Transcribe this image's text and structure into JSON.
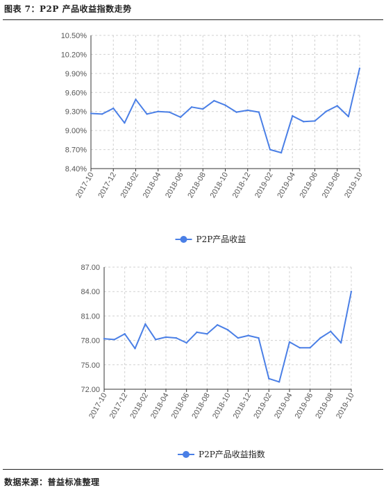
{
  "figure_title": "图表 7：P2P 产品收益指数走势",
  "source": "数据来源：普益标准整理",
  "colors": {
    "line": "#4a7fe6",
    "grid": "#d0d0d0",
    "axis": "#333333"
  },
  "chart_data": [
    {
      "type": "line",
      "title": "",
      "x": [
        "2017-10",
        "2017-11",
        "2017-12",
        "2018-01",
        "2018-02",
        "2018-03",
        "2018-04",
        "2018-05",
        "2018-06",
        "2018-07",
        "2018-08",
        "2018-09",
        "2018-10",
        "2018-11",
        "2018-12",
        "2019-01",
        "2019-02",
        "2019-03",
        "2019-04",
        "2019-05",
        "2019-06",
        "2019-07",
        "2019-08",
        "2019-09",
        "2019-10"
      ],
      "x_tick_labels": [
        "2017-10",
        "2017-12",
        "2018-02",
        "2018-04",
        "2018-06",
        "2018-08",
        "2018-10",
        "2018-12",
        "2019-02",
        "2019-04",
        "2019-06",
        "2019-08",
        "2019-10"
      ],
      "y_ticks": [
        "8.40%",
        "8.70%",
        "9.00%",
        "9.30%",
        "9.60%",
        "9.90%",
        "10.20%",
        "10.50%"
      ],
      "ylim": [
        8.4,
        10.5
      ],
      "y_unit": "percent",
      "series": [
        {
          "name": "P2P产品收益",
          "values": [
            9.27,
            9.26,
            9.35,
            9.12,
            9.49,
            9.26,
            9.3,
            9.29,
            9.21,
            9.37,
            9.34,
            9.47,
            9.4,
            9.29,
            9.32,
            9.29,
            8.7,
            8.65,
            9.23,
            9.14,
            9.15,
            9.3,
            9.39,
            9.22,
            9.98
          ]
        }
      ],
      "grid": true,
      "legend_position": "bottom"
    },
    {
      "type": "line",
      "title": "",
      "x": [
        "2017-10",
        "2017-11",
        "2017-12",
        "2018-01",
        "2018-02",
        "2018-03",
        "2018-04",
        "2018-05",
        "2018-06",
        "2018-07",
        "2018-08",
        "2018-09",
        "2018-10",
        "2018-11",
        "2018-12",
        "2019-01",
        "2019-02",
        "2019-03",
        "2019-04",
        "2019-05",
        "2019-06",
        "2019-07",
        "2019-08",
        "2019-09",
        "2019-10"
      ],
      "x_tick_labels": [
        "2017-10",
        "2017-12",
        "2018-02",
        "2018-04",
        "2018-06",
        "2018-08",
        "2018-10",
        "2018-12",
        "2019-02",
        "2019-04",
        "2019-06",
        "2019-08",
        "2019-10"
      ],
      "y_ticks": [
        "72.00",
        "75.00",
        "78.00",
        "81.00",
        "84.00",
        "87.00"
      ],
      "ylim": [
        72,
        87
      ],
      "series": [
        {
          "name": "P2P产品收益指数",
          "values": [
            78.2,
            78.1,
            78.8,
            77.0,
            80.0,
            78.1,
            78.4,
            78.3,
            77.7,
            79.0,
            78.8,
            79.9,
            79.3,
            78.3,
            78.6,
            78.3,
            73.3,
            72.9,
            77.8,
            77.1,
            77.1,
            78.3,
            79.1,
            77.7,
            84.0
          ]
        }
      ],
      "grid": true,
      "legend_position": "bottom"
    }
  ]
}
